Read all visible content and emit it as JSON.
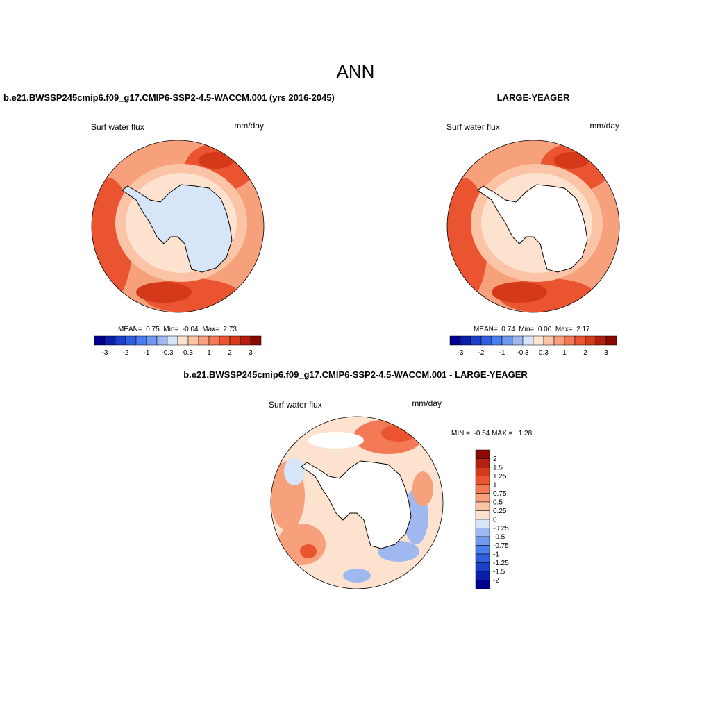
{
  "header": {
    "title": "ANN"
  },
  "panels": [
    {
      "title": "b.e21.BWSSP245cmip6.f09_g17.CMIP6-SSP2-4.5-WACCM.001 (yrs 2016-2045)",
      "variable": "Surf water flux",
      "units": "mm/day",
      "stats": "MEAN=  0.75  Min=  -0.04  Max=  2.73",
      "colorbar": [
        "-3",
        "-2",
        "-1",
        "-0.3",
        "0.3",
        "1",
        "2",
        "3"
      ]
    },
    {
      "title": "LARGE-YEAGER",
      "variable": "Surf water flux",
      "units": "mm/day",
      "stats": "MEAN=  0.74  Min=  0.00  Max=  2.17",
      "colorbar": [
        "-3",
        "-2",
        "-1",
        "-0.3",
        "0.3",
        "1",
        "2",
        "3"
      ]
    },
    {
      "title": "b.e21.BWSSP245cmip6.f09_g17.CMIP6-SSP2-4.5-WACCM.001 - LARGE-YEAGER",
      "variable": "Surf water flux",
      "units": "mm/day",
      "stats": "MIN =  -0.54 MAX =   1.28",
      "colorbar": [
        "2",
        "1.5",
        "1.25",
        "1",
        "0.75",
        "0.5",
        "0.25",
        "0",
        "-0.25",
        "-0.5",
        "-0.75",
        "-1",
        "-1.25",
        "-1.5",
        "-2"
      ]
    }
  ]
}
